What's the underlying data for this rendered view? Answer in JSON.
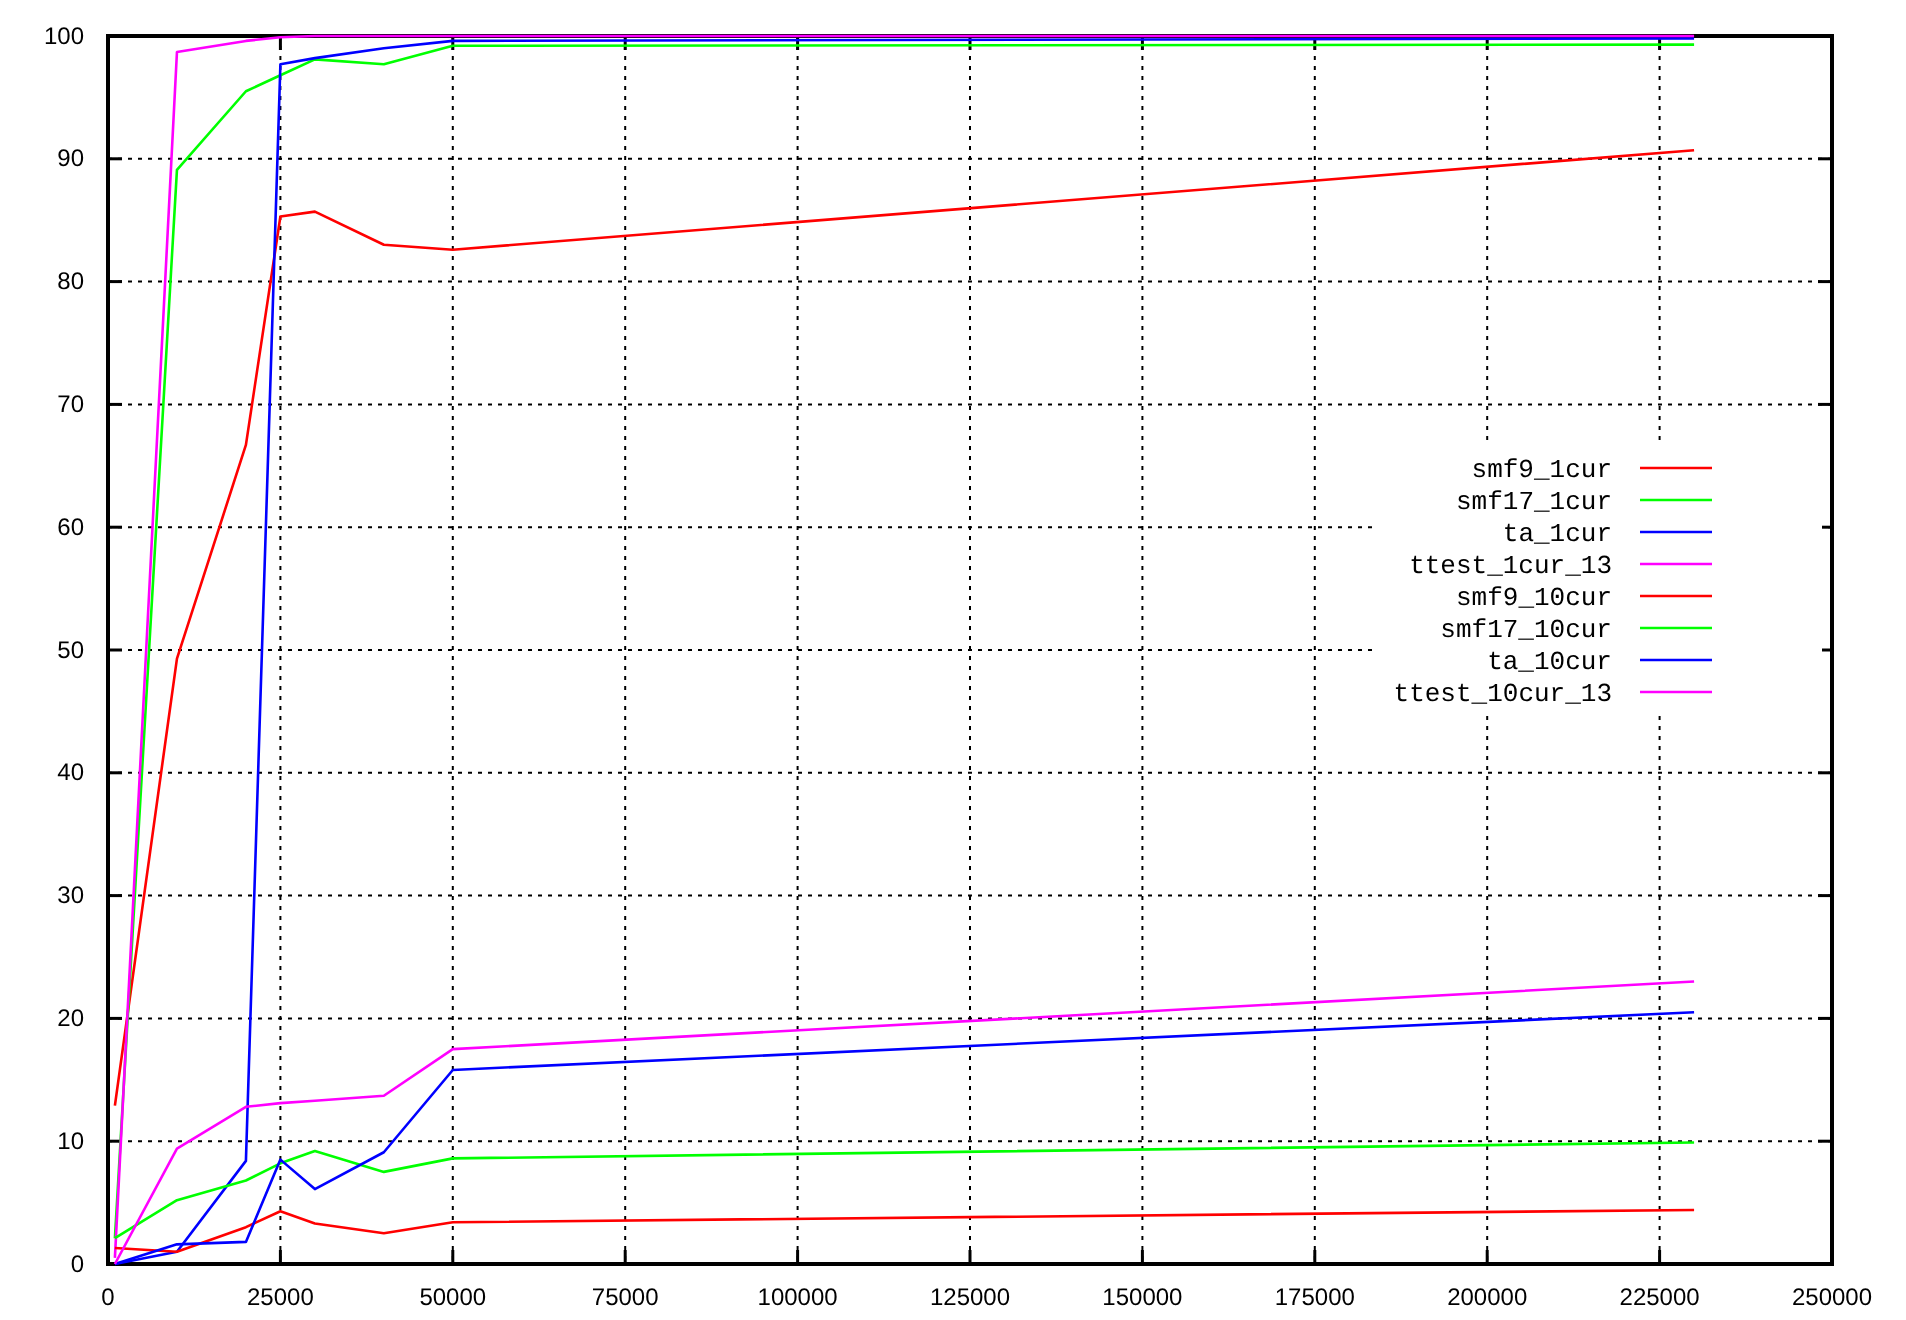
{
  "chart_data": {
    "type": "line",
    "xlim": [
      0,
      250000
    ],
    "ylim": [
      0,
      100
    ],
    "xticks": [
      0,
      25000,
      50000,
      75000,
      100000,
      125000,
      150000,
      175000,
      200000,
      225000,
      250000
    ],
    "yticks": [
      0,
      10,
      20,
      30,
      40,
      50,
      60,
      70,
      80,
      90,
      100
    ],
    "grid": true,
    "legend": "right",
    "marker": "none",
    "line_style": "solid",
    "x": [
      1000,
      10000,
      20000,
      25000,
      30000,
      40000,
      50000,
      230000
    ],
    "series": [
      {
        "name": "smf9_1cur",
        "color": "#ff0000",
        "values": [
          12.9,
          49.3,
          66.7,
          85.3,
          85.7,
          83.0,
          82.6,
          90.7
        ]
      },
      {
        "name": "smf17_1cur",
        "color": "#00ff00",
        "values": [
          2.1,
          89.1,
          95.5,
          96.8,
          98.1,
          97.7,
          99.2,
          99.3
        ]
      },
      {
        "name": "ta_1cur",
        "color": "#0000ff",
        "values": [
          0,
          1.0,
          8.4,
          97.7,
          98.2,
          99.0,
          99.6,
          99.8
        ]
      },
      {
        "name": "ttest_1cur_13",
        "color": "#ff00ff",
        "values": [
          0.5,
          98.7,
          99.6,
          99.9,
          100,
          100,
          100,
          100
        ]
      },
      {
        "name": "smf9_10cur",
        "color": "#ff0000",
        "values": [
          1.3,
          1.0,
          3.0,
          4.3,
          3.3,
          2.5,
          3.4,
          4.4
        ]
      },
      {
        "name": "smf17_10cur",
        "color": "#00ff00",
        "values": [
          2.1,
          5.2,
          6.8,
          8.2,
          9.2,
          7.5,
          8.6,
          9.9
        ]
      },
      {
        "name": "ta_10cur",
        "color": "#0000ff",
        "values": [
          0,
          1.6,
          1.8,
          8.5,
          6.1,
          9.1,
          15.8,
          20.5
        ]
      },
      {
        "name": "ttest_10cur_13",
        "color": "#ff00ff",
        "values": [
          0,
          9.4,
          12.8,
          13.1,
          13.3,
          13.7,
          17.5,
          23.0
        ]
      }
    ]
  }
}
